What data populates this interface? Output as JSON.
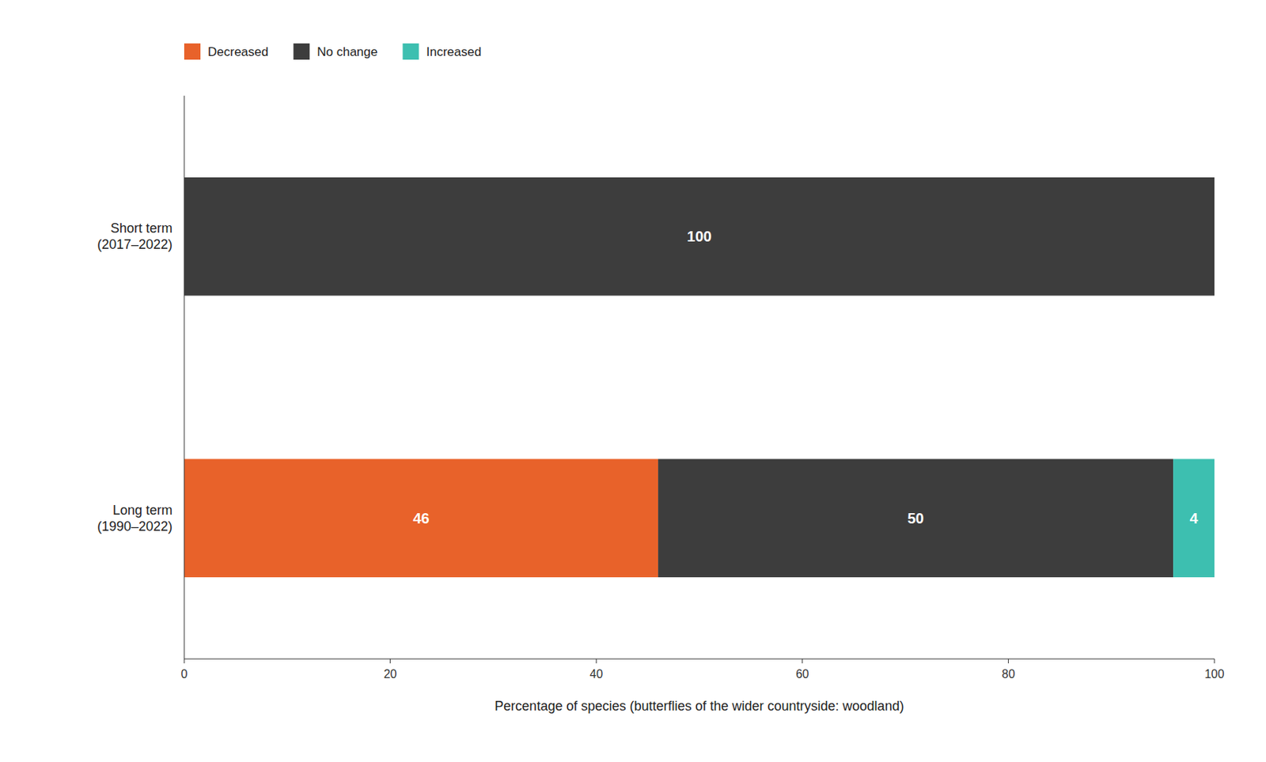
{
  "chart_data": {
    "type": "bar",
    "orientation": "horizontal",
    "stacked": true,
    "data_labels": true,
    "categories": [
      "Short term\n(2017–2022)",
      "Long term\n(1990–2022)"
    ],
    "series": [
      {
        "name": "Decreased",
        "color": "#E8622A",
        "values": [
          0,
          46
        ]
      },
      {
        "name": "No change",
        "color": "#3D3D3D",
        "values": [
          100,
          50
        ]
      },
      {
        "name": "Increased",
        "color": "#3DBFB0",
        "values": [
          0,
          4
        ]
      }
    ],
    "xlabel": "Percentage of species (butterflies of the wider countryside: woodland)",
    "xlim": [
      0,
      100
    ],
    "xticks": [
      0,
      20,
      40,
      60,
      80,
      100
    ],
    "grid": false,
    "legend": "top-left"
  }
}
